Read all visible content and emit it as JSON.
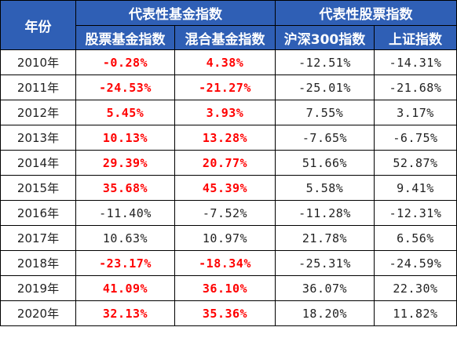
{
  "header": {
    "year_label": "年份",
    "group_fund": "代表性基金指数",
    "group_stock": "代表性股票指数",
    "columns": [
      "股票基金指数",
      "混合基金指数",
      "沪深300指数",
      "上证指数"
    ]
  },
  "colors": {
    "header_bg": "#2f5fb5",
    "highlight": "#ff0000",
    "normal_text": "#222222"
  },
  "rows": [
    {
      "year": "2010年",
      "stock_fund": "-0.28%",
      "mixed_fund": "4.38%",
      "hs300": "-12.51%",
      "shanghai": "-14.31%",
      "hl_stock_fund": true,
      "hl_mixed_fund": true
    },
    {
      "year": "2011年",
      "stock_fund": "-24.53%",
      "mixed_fund": "-21.27%",
      "hs300": "-25.01%",
      "shanghai": "-21.68%",
      "hl_stock_fund": true,
      "hl_mixed_fund": true
    },
    {
      "year": "2012年",
      "stock_fund": "5.45%",
      "mixed_fund": "3.93%",
      "hs300": "7.55%",
      "shanghai": "3.17%",
      "hl_stock_fund": true,
      "hl_mixed_fund": true
    },
    {
      "year": "2013年",
      "stock_fund": "10.13%",
      "mixed_fund": "13.28%",
      "hs300": "-7.65%",
      "shanghai": "-6.75%",
      "hl_stock_fund": true,
      "hl_mixed_fund": true
    },
    {
      "year": "2014年",
      "stock_fund": "29.39%",
      "mixed_fund": "20.77%",
      "hs300": "51.66%",
      "shanghai": "52.87%",
      "hl_stock_fund": true,
      "hl_mixed_fund": true
    },
    {
      "year": "2015年",
      "stock_fund": "35.68%",
      "mixed_fund": "45.39%",
      "hs300": "5.58%",
      "shanghai": "9.41%",
      "hl_stock_fund": true,
      "hl_mixed_fund": true
    },
    {
      "year": "2016年",
      "stock_fund": "-11.40%",
      "mixed_fund": "-7.52%",
      "hs300": "-11.28%",
      "shanghai": "-12.31%",
      "hl_stock_fund": false,
      "hl_mixed_fund": false
    },
    {
      "year": "2017年",
      "stock_fund": "10.63%",
      "mixed_fund": "10.97%",
      "hs300": "21.78%",
      "shanghai": "6.56%",
      "hl_stock_fund": false,
      "hl_mixed_fund": false
    },
    {
      "year": "2018年",
      "stock_fund": "-23.17%",
      "mixed_fund": "-18.34%",
      "hs300": "-25.31%",
      "shanghai": "-24.59%",
      "hl_stock_fund": true,
      "hl_mixed_fund": true
    },
    {
      "year": "2019年",
      "stock_fund": "41.09%",
      "mixed_fund": "36.10%",
      "hs300": "36.07%",
      "shanghai": "22.30%",
      "hl_stock_fund": true,
      "hl_mixed_fund": true
    },
    {
      "year": "2020年",
      "stock_fund": "32.13%",
      "mixed_fund": "35.36%",
      "hs300": "18.20%",
      "shanghai": "11.82%",
      "hl_stock_fund": true,
      "hl_mixed_fund": true
    }
  ]
}
